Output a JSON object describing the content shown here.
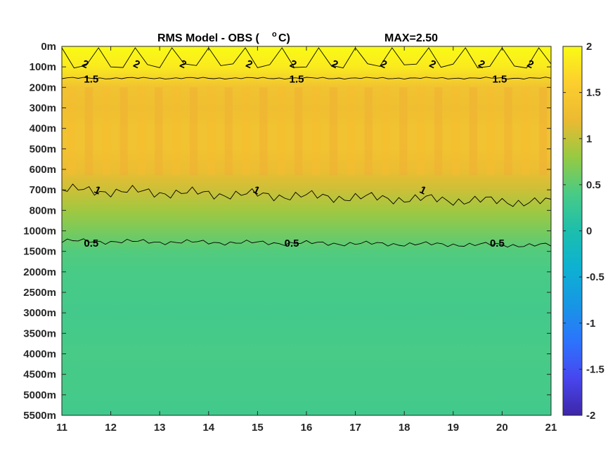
{
  "chart_data": {
    "type": "heatmap",
    "title_parts": {
      "main": "RMS Model - OBS (",
      "degree": "o",
      "unit_tail": "C)",
      "max_label": "MAX=2.50"
    },
    "xlabel": "",
    "ylabel": "",
    "x_ticks": [
      "11",
      "12",
      "13",
      "14",
      "15",
      "16",
      "17",
      "18",
      "19",
      "20",
      "21"
    ],
    "xlim": [
      11,
      21
    ],
    "y_ticks": [
      "0m",
      "100m",
      "200m",
      "300m",
      "400m",
      "500m",
      "600m",
      "700m",
      "800m",
      "1000m",
      "1500m",
      "2000m",
      "2500m",
      "3000m",
      "3500m",
      "4000m",
      "4500m",
      "5000m",
      "5500m"
    ],
    "y_scale": "categorical depth levels (top = 0m)",
    "colorbar": {
      "ticks": [
        "2",
        "1.5",
        "1",
        "0.5",
        "0",
        "-0.5",
        "-1",
        "-1.5",
        "-2"
      ],
      "range": [
        -2,
        2
      ],
      "colormap": "parula"
    },
    "depth_profile": [
      {
        "depth": "0m",
        "value": 2.1
      },
      {
        "depth": "100m",
        "value": 1.85
      },
      {
        "depth": "200m",
        "value": 1.35
      },
      {
        "depth": "300m",
        "value": 1.3
      },
      {
        "depth": "400m",
        "value": 1.35
      },
      {
        "depth": "500m",
        "value": 1.35
      },
      {
        "depth": "600m",
        "value": 1.25
      },
      {
        "depth": "700m",
        "value": 1.05
      },
      {
        "depth": "800m",
        "value": 0.85
      },
      {
        "depth": "1000m",
        "value": 0.65
      },
      {
        "depth": "1500m",
        "value": 0.45
      },
      {
        "depth": "2000m",
        "value": 0.4
      },
      {
        "depth": "2500m",
        "value": 0.38
      },
      {
        "depth": "3000m",
        "value": 0.35
      },
      {
        "depth": "3500m",
        "value": 0.37
      },
      {
        "depth": "4000m",
        "value": 0.4
      },
      {
        "depth": "4500m",
        "value": 0.38
      },
      {
        "depth": "5000m",
        "value": 0.37
      },
      {
        "depth": "5500m",
        "value": 0.33
      }
    ],
    "contours": [
      {
        "level": "2",
        "label_x": [
          11.45,
          12.5,
          13.45,
          14.8,
          15.7,
          16.55,
          17.55,
          18.55,
          19.55,
          20.55
        ]
      },
      {
        "level": "1.5",
        "label_x": [
          11.6,
          15.8,
          19.95
        ]
      },
      {
        "level": "1",
        "label_x": [
          11.7,
          14.95,
          18.35
        ]
      },
      {
        "level": "0.5",
        "label_x": [
          11.6,
          15.7,
          19.9
        ]
      }
    ],
    "grid": false,
    "legend": "colorbar right"
  }
}
